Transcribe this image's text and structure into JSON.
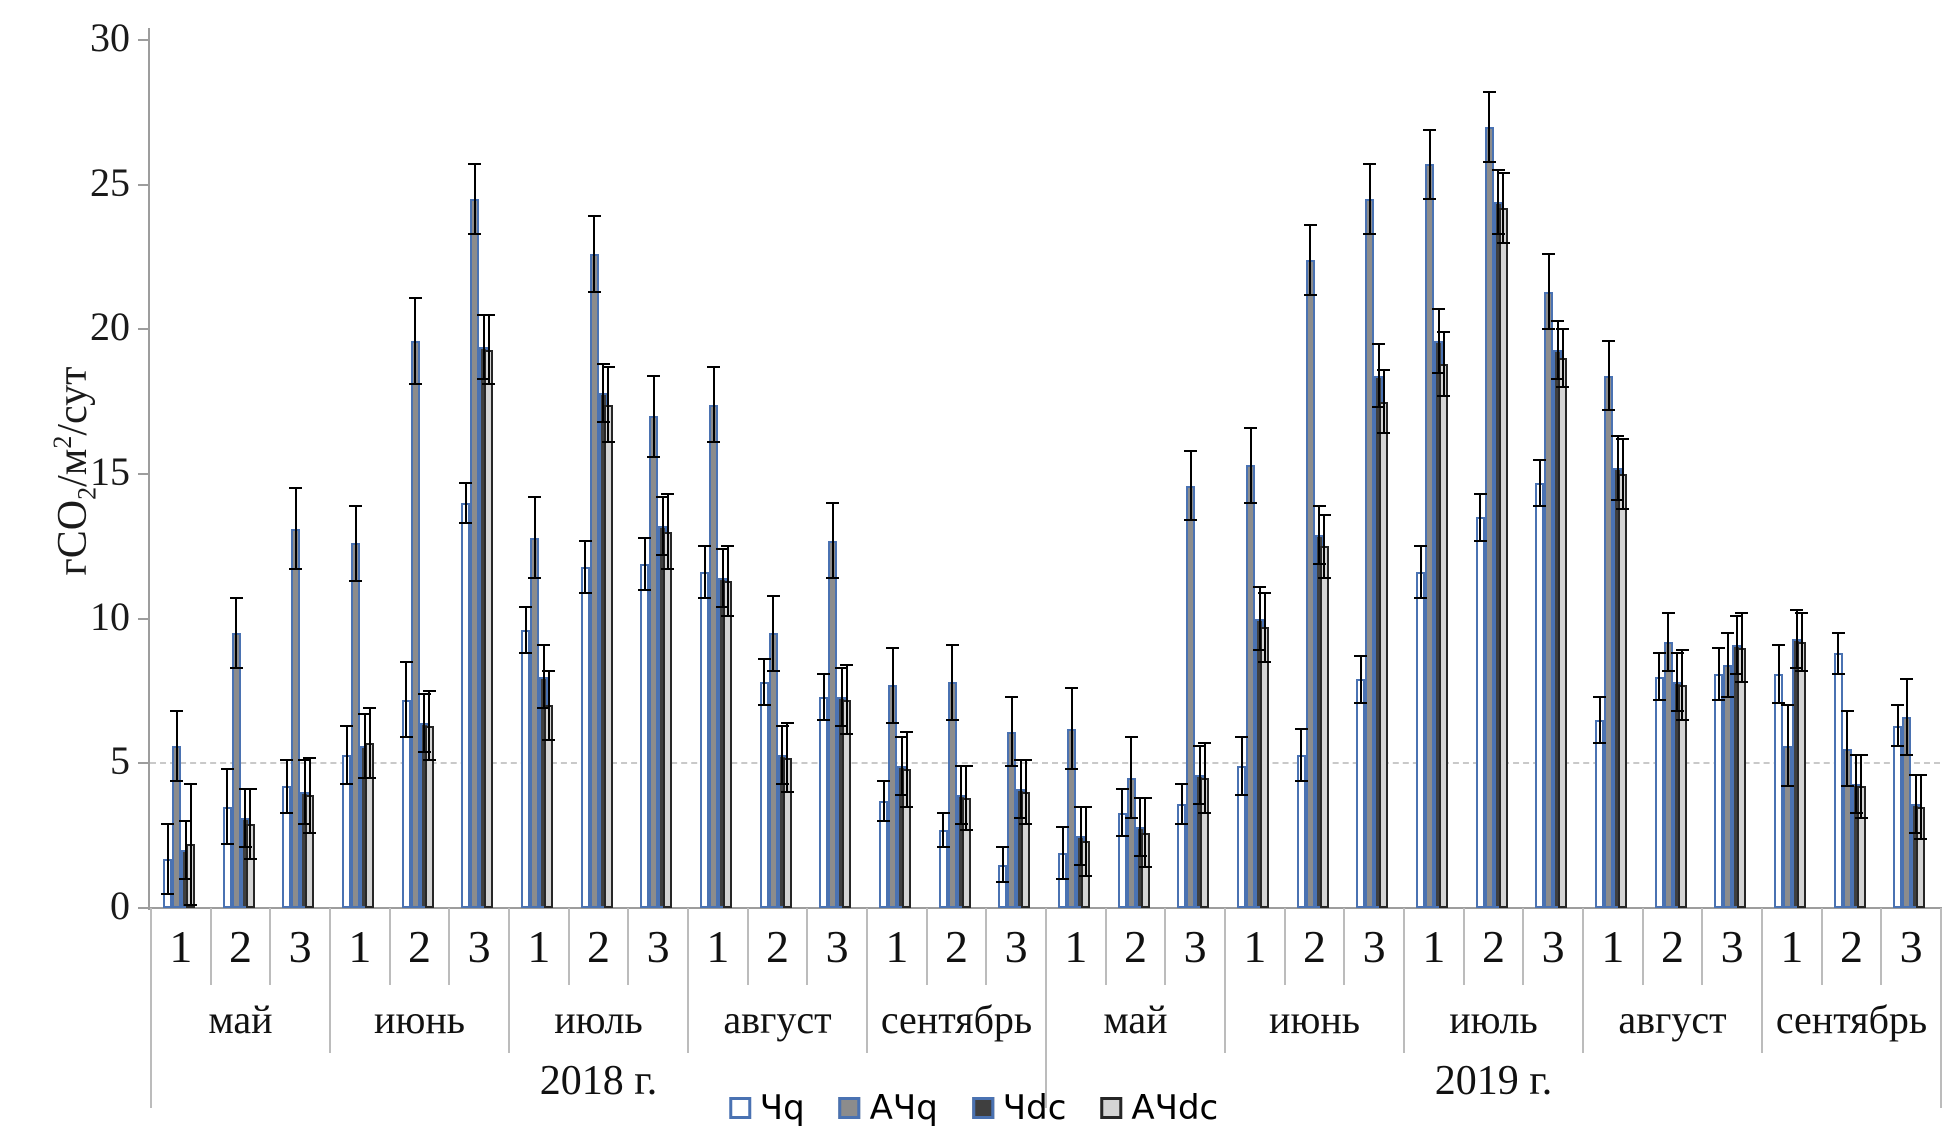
{
  "chart_data": {
    "type": "bar",
    "title": "",
    "ylabel_parts": {
      "p1": "гCO",
      "sub": "2",
      "p2": "/м",
      "sup": "2",
      "p3": "/сут"
    },
    "ylim": [
      0,
      30
    ],
    "yticks": [
      0,
      5,
      10,
      15,
      20,
      25,
      30
    ],
    "gridline_y": 5,
    "grid": "single dashed line at y=5",
    "legend_position": "bottom-center",
    "error_bars": true,
    "colors": {
      "axis_gray": "#9d9d9d",
      "cell_border_gray": "#bcbcbc",
      "error_black": "#000000",
      "blue_outline": "#4a72b2",
      "dark_outline": "#262626"
    },
    "series_meta": [
      {
        "key": "q",
        "label": "Чq",
        "fill": "#ffffff",
        "border": "#4a72b2"
      },
      {
        "key": "aq",
        "label": "АЧq",
        "fill": "#8c8c8c",
        "border": "#4a72b2"
      },
      {
        "key": "dc",
        "label": "Чdc",
        "fill": "#3f3f3f",
        "border": "#4a72b2"
      },
      {
        "key": "adc",
        "label": "АЧdc",
        "fill": "#d4d4d4",
        "border": "#262626"
      }
    ],
    "series_order_note": "values arrays are [Чq, АЧq, Чdc, АЧdc]; errors are ± in same order",
    "years": [
      {
        "label": "2018 г.",
        "months": [
          {
            "label": "май",
            "decades": [
              {
                "label": "1",
                "values": [
                  1.7,
                  5.6,
                  2.0,
                  2.2
                ],
                "errors": [
                  1.2,
                  1.2,
                  1.0,
                  2.1
                ]
              },
              {
                "label": "2",
                "values": [
                  3.5,
                  9.5,
                  3.1,
                  2.9
                ],
                "errors": [
                  1.3,
                  1.2,
                  1.0,
                  1.2
                ]
              },
              {
                "label": "3",
                "values": [
                  4.2,
                  13.1,
                  4.0,
                  3.9
                ],
                "errors": [
                  0.9,
                  1.4,
                  1.1,
                  1.3
                ]
              }
            ]
          },
          {
            "label": "июнь",
            "decades": [
              {
                "label": "1",
                "values": [
                  5.3,
                  12.6,
                  5.6,
                  5.7
                ],
                "errors": [
                  1.0,
                  1.3,
                  1.1,
                  1.2
                ]
              },
              {
                "label": "2",
                "values": [
                  7.2,
                  19.6,
                  6.4,
                  6.3
                ],
                "errors": [
                  1.3,
                  1.5,
                  1.0,
                  1.2
                ]
              },
              {
                "label": "3",
                "values": [
                  14.0,
                  24.5,
                  19.4,
                  19.3
                ],
                "errors": [
                  0.7,
                  1.2,
                  1.1,
                  1.2
                ]
              }
            ]
          },
          {
            "label": "июль",
            "decades": [
              {
                "label": "1",
                "values": [
                  9.6,
                  12.8,
                  8.0,
                  7.0
                ],
                "errors": [
                  0.8,
                  1.4,
                  1.1,
                  1.2
                ]
              },
              {
                "label": "2",
                "values": [
                  11.8,
                  22.6,
                  17.8,
                  17.4
                ],
                "errors": [
                  0.9,
                  1.3,
                  1.0,
                  1.3
                ]
              },
              {
                "label": "3",
                "values": [
                  11.9,
                  17.0,
                  13.2,
                  13.0
                ],
                "errors": [
                  0.9,
                  1.4,
                  1.0,
                  1.3
                ]
              }
            ]
          },
          {
            "label": "август",
            "decades": [
              {
                "label": "1",
                "values": [
                  11.6,
                  17.4,
                  11.4,
                  11.3
                ],
                "errors": [
                  0.9,
                  1.3,
                  1.0,
                  1.2
                ]
              },
              {
                "label": "2",
                "values": [
                  7.8,
                  9.5,
                  5.3,
                  5.2
                ],
                "errors": [
                  0.8,
                  1.3,
                  1.0,
                  1.2
                ]
              },
              {
                "label": "3",
                "values": [
                  7.3,
                  12.7,
                  7.3,
                  7.2
                ],
                "errors": [
                  0.8,
                  1.3,
                  1.0,
                  1.2
                ]
              }
            ]
          },
          {
            "label": "сентябрь",
            "decades": [
              {
                "label": "1",
                "values": [
                  3.7,
                  7.7,
                  4.9,
                  4.8
                ],
                "errors": [
                  0.7,
                  1.3,
                  1.0,
                  1.3
                ]
              },
              {
                "label": "2",
                "values": [
                  2.7,
                  7.8,
                  3.9,
                  3.8
                ],
                "errors": [
                  0.6,
                  1.3,
                  1.0,
                  1.1
                ]
              },
              {
                "label": "3",
                "values": [
                  1.5,
                  6.1,
                  4.1,
                  4.0
                ],
                "errors": [
                  0.6,
                  1.2,
                  1.0,
                  1.1
                ]
              }
            ]
          }
        ]
      },
      {
        "label": "2019 г.",
        "months": [
          {
            "label": "май",
            "decades": [
              {
                "label": "1",
                "values": [
                  1.9,
                  6.2,
                  2.5,
                  2.3
                ],
                "errors": [
                  0.9,
                  1.4,
                  1.0,
                  1.2
                ]
              },
              {
                "label": "2",
                "values": [
                  3.3,
                  4.5,
                  2.8,
                  2.6
                ],
                "errors": [
                  0.8,
                  1.4,
                  1.0,
                  1.2
                ]
              },
              {
                "label": "3",
                "values": [
                  3.6,
                  14.6,
                  4.6,
                  4.5
                ],
                "errors": [
                  0.7,
                  1.2,
                  1.0,
                  1.2
                ]
              }
            ]
          },
          {
            "label": "июнь",
            "decades": [
              {
                "label": "1",
                "values": [
                  4.9,
                  15.3,
                  10.0,
                  9.7
                ],
                "errors": [
                  1.0,
                  1.3,
                  1.1,
                  1.2
                ]
              },
              {
                "label": "2",
                "values": [
                  5.3,
                  22.4,
                  12.9,
                  12.5
                ],
                "errors": [
                  0.9,
                  1.2,
                  1.0,
                  1.1
                ]
              },
              {
                "label": "3",
                "values": [
                  7.9,
                  24.5,
                  18.4,
                  17.5
                ],
                "errors": [
                  0.8,
                  1.2,
                  1.1,
                  1.1
                ]
              }
            ]
          },
          {
            "label": "июль",
            "decades": [
              {
                "label": "1",
                "values": [
                  11.6,
                  25.7,
                  19.6,
                  18.8
                ],
                "errors": [
                  0.9,
                  1.2,
                  1.1,
                  1.1
                ]
              },
              {
                "label": "2",
                "values": [
                  13.5,
                  27.0,
                  24.4,
                  24.2
                ],
                "errors": [
                  0.8,
                  1.2,
                  1.1,
                  1.2
                ]
              },
              {
                "label": "3",
                "values": [
                  14.7,
                  21.3,
                  19.3,
                  19.0
                ],
                "errors": [
                  0.8,
                  1.3,
                  1.0,
                  1.0
                ]
              }
            ]
          },
          {
            "label": "август",
            "decades": [
              {
                "label": "1",
                "values": [
                  6.5,
                  18.4,
                  15.2,
                  15.0
                ],
                "errors": [
                  0.8,
                  1.2,
                  1.1,
                  1.2
                ]
              },
              {
                "label": "2",
                "values": [
                  8.0,
                  9.2,
                  7.8,
                  7.7
                ],
                "errors": [
                  0.8,
                  1.0,
                  1.0,
                  1.2
                ]
              },
              {
                "label": "3",
                "values": [
                  8.1,
                  8.4,
                  9.1,
                  9.0
                ],
                "errors": [
                  0.9,
                  1.1,
                  1.0,
                  1.2
                ]
              }
            ]
          },
          {
            "label": "сентябрь",
            "decades": [
              {
                "label": "1",
                "values": [
                  8.1,
                  5.6,
                  9.3,
                  9.2
                ],
                "errors": [
                  1.0,
                  1.4,
                  1.0,
                  1.0
                ]
              },
              {
                "label": "2",
                "values": [
                  8.8,
                  5.5,
                  4.3,
                  4.2
                ],
                "errors": [
                  0.7,
                  1.3,
                  1.0,
                  1.1
                ]
              },
              {
                "label": "3",
                "values": [
                  6.3,
                  6.6,
                  3.6,
                  3.5
                ],
                "errors": [
                  0.7,
                  1.3,
                  1.0,
                  1.1
                ]
              }
            ]
          }
        ]
      }
    ]
  }
}
